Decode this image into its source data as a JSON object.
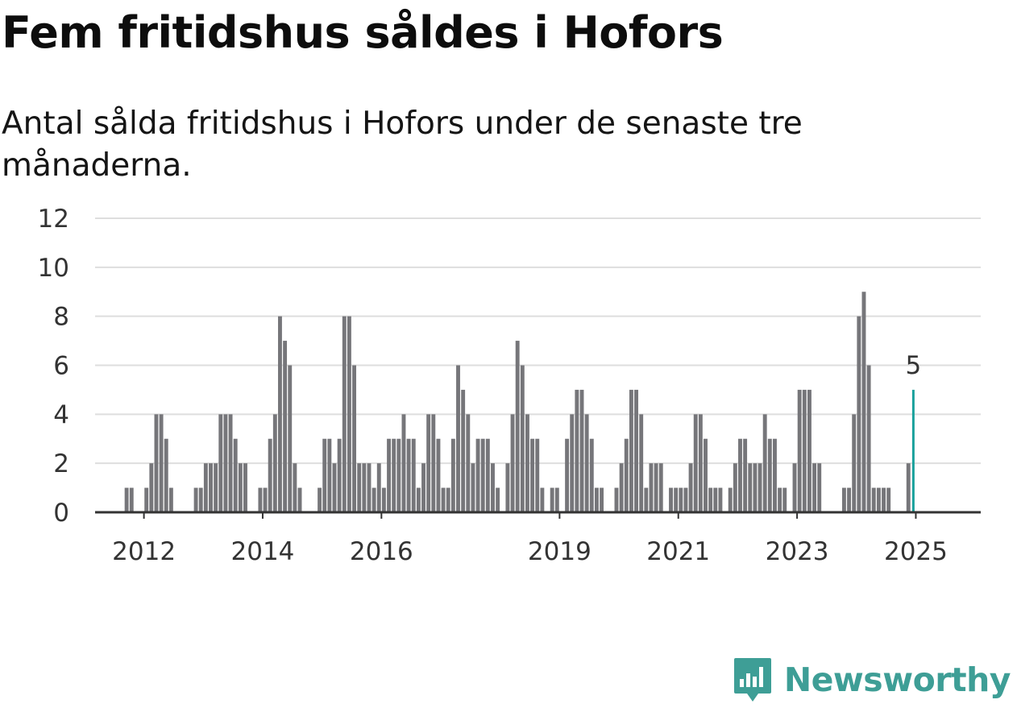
{
  "title": "Fem fritidshus såldes i Hofors",
  "subtitle": "Antal sålda fritidshus i Hofors under de senaste tre månaderna.",
  "brand": {
    "name": "Newsworthy",
    "icon": "newsworthy-logo-icon",
    "color": "#3e9e96"
  },
  "colors": {
    "bar": "#76767a",
    "highlight": "#1aa19c",
    "grid": "#dedede",
    "axis": "#333333"
  },
  "chart_data": {
    "type": "bar",
    "start": "2011-01",
    "x_ticks": [
      "2012",
      "2014",
      "2016",
      "2019",
      "2021",
      "2023",
      "2025"
    ],
    "y_ticks": [
      "0",
      "2",
      "4",
      "6",
      "8",
      "10",
      "12"
    ],
    "ylim": [
      0,
      12
    ],
    "grid": true,
    "values": [
      0,
      0,
      0,
      0,
      0,
      0,
      0,
      0,
      1,
      1,
      0,
      0,
      1,
      2,
      4,
      4,
      3,
      1,
      0,
      0,
      0,
      0,
      1,
      1,
      2,
      2,
      2,
      4,
      4,
      4,
      3,
      2,
      2,
      0,
      0,
      1,
      1,
      3,
      4,
      8,
      7,
      6,
      2,
      1,
      0,
      0,
      0,
      1,
      3,
      3,
      2,
      3,
      8,
      8,
      6,
      2,
      2,
      2,
      1,
      2,
      1,
      3,
      3,
      3,
      4,
      3,
      3,
      1,
      2,
      4,
      4,
      3,
      1,
      1,
      3,
      6,
      5,
      4,
      2,
      3,
      3,
      3,
      2,
      1,
      0,
      2,
      4,
      7,
      6,
      4,
      3,
      3,
      1,
      0,
      1,
      1,
      0,
      3,
      4,
      5,
      5,
      4,
      3,
      1,
      1,
      0,
      0,
      1,
      2,
      3,
      5,
      5,
      4,
      1,
      2,
      2,
      2,
      0,
      1,
      1,
      1,
      1,
      2,
      4,
      4,
      3,
      1,
      1,
      1,
      0,
      1,
      2,
      3,
      3,
      2,
      2,
      2,
      4,
      3,
      3,
      1,
      1,
      0,
      2,
      5,
      5,
      5,
      2,
      2,
      0,
      0,
      0,
      0,
      1,
      1,
      4,
      8,
      9,
      6,
      1,
      1,
      1,
      1,
      0,
      0,
      0,
      2,
      5
    ],
    "highlight_index": 167,
    "highlight_label": "5"
  }
}
